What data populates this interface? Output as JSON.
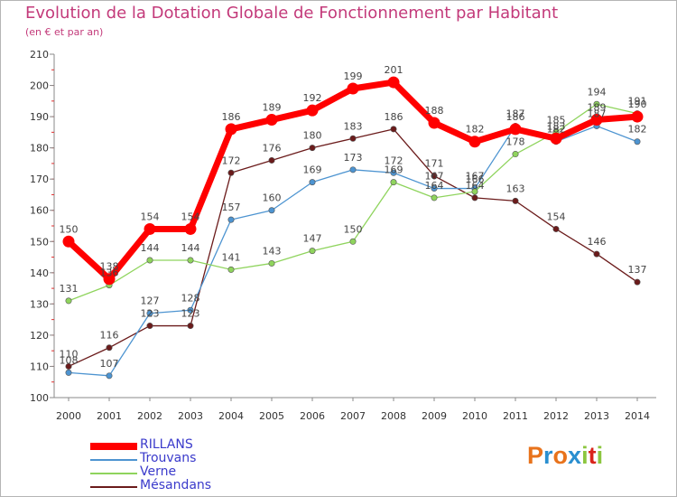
{
  "title": "Evolution de la Dotation Globale de Fonctionnement par Habitant",
  "subtitle": "(en € et par an)",
  "logo": {
    "text": "Proxiti",
    "letters": [
      "P",
      "r",
      "o",
      "x",
      "i",
      "t",
      "i"
    ],
    "colors": [
      "#e8731c",
      "#2a8fd0",
      "#e8731c",
      "#2a8fd0",
      "#8cc63f",
      "#d9241c",
      "#8cc63f"
    ]
  },
  "chart_data": {
    "type": "line",
    "title": "Evolution de la Dotation Globale de Fonctionnement par Habitant",
    "ylabel": "(en € et par an)",
    "x": [
      "2000",
      "2001",
      "2002",
      "2003",
      "2004",
      "2005",
      "2006",
      "2007",
      "2008",
      "2009",
      "2010",
      "2011",
      "2012",
      "2013",
      "2014"
    ],
    "ylim": [
      100,
      210
    ],
    "yticks": [
      "100",
      "110",
      "120",
      "130",
      "140",
      "150",
      "160",
      "170",
      "180",
      "190",
      "200",
      "210"
    ],
    "grid": false,
    "series": [
      {
        "name": "RILLANS",
        "color": "#ff0000",
        "values": [
          150,
          138,
          154,
          154,
          186,
          189,
          192,
          199,
          201,
          188,
          182,
          186,
          183,
          189,
          190
        ],
        "labels": [
          "150",
          "138",
          "154",
          "154",
          "186",
          "189",
          "192",
          "199",
          "201",
          "188",
          "182",
          "186",
          "183",
          "189",
          "190"
        ]
      },
      {
        "name": "Trouvans",
        "color": "#4d94d1",
        "values": [
          108,
          107,
          127,
          128,
          157,
          160,
          169,
          173,
          172,
          167,
          167,
          187,
          182,
          187,
          182
        ],
        "labels": [
          "108",
          "107",
          "127",
          "128",
          "157",
          "160",
          "169",
          "173",
          "172",
          "167",
          "167",
          "187",
          "182",
          "187",
          "182"
        ]
      },
      {
        "name": "Verne",
        "color": "#8fd45d",
        "values": [
          131,
          136,
          144,
          144,
          141,
          143,
          147,
          150,
          169,
          164,
          166,
          178,
          185,
          194,
          191
        ],
        "labels": [
          "131",
          "136",
          "144",
          "144",
          "141",
          "143",
          "147",
          "150",
          "169",
          "164",
          "166",
          "178",
          "185",
          "194",
          "191"
        ]
      },
      {
        "name": "Mésandans",
        "color": "#6b1b1b",
        "values": [
          110,
          116,
          123,
          123,
          172,
          176,
          180,
          183,
          186,
          171,
          164,
          163,
          154,
          146,
          137
        ],
        "labels": [
          "110",
          "116",
          "123",
          "123",
          "172",
          "176",
          "180",
          "183",
          "186",
          "171",
          "164",
          "163",
          "154",
          "146",
          "137"
        ]
      }
    ]
  }
}
